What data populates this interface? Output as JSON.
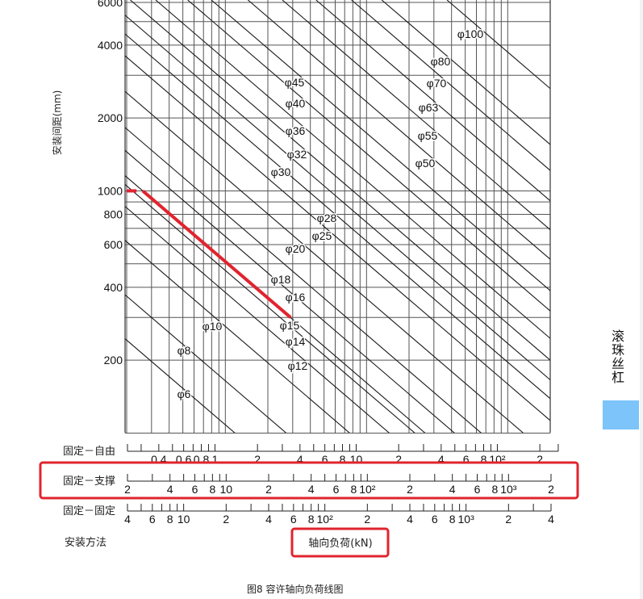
{
  "chart_data": {
    "type": "line",
    "title": "",
    "caption": "图8 容许轴向负荷线图",
    "ylabel": "安装间距(mm)",
    "xlabel": "轴向负荷(kN)",
    "mounting_label": "安装方法",
    "y_scale": "log",
    "ylim": [
      100,
      6000
    ],
    "y_ticks": [
      {
        "v": 6000,
        "t": "6000"
      },
      {
        "v": 4000,
        "t": "4000"
      },
      {
        "v": 2000,
        "t": "2000"
      },
      {
        "v": 1000,
        "t": "1000"
      },
      {
        "v": 800,
        "t": "800"
      },
      {
        "v": 600,
        "t": "600"
      },
      {
        "v": 400,
        "t": "400"
      },
      {
        "v": 200,
        "t": "200"
      }
    ],
    "y_grid": [
      6000,
      5000,
      4000,
      3000,
      2000,
      1000,
      900,
      800,
      700,
      600,
      500,
      400,
      300,
      200,
      100
    ],
    "x_scale": "log",
    "grid": true,
    "x_axes": [
      {
        "name": "固定－自由",
        "range": [
          0.24,
          270
        ],
        "labels": [
          {
            "v": 0.4,
            "t": "0.4"
          },
          {
            "v": 0.6,
            "t": "0.6"
          },
          {
            "v": 0.8,
            "t": "0.8"
          },
          {
            "v": 1,
            "t": "1"
          },
          {
            "v": 2,
            "t": "2"
          },
          {
            "v": 4,
            "t": "4"
          },
          {
            "v": 6,
            "t": "6"
          },
          {
            "v": 8,
            "t": "8"
          },
          {
            "v": 10,
            "t": "10"
          },
          {
            "v": 20,
            "t": "2"
          },
          {
            "v": 40,
            "t": "4"
          },
          {
            "v": 60,
            "t": "6"
          },
          {
            "v": 80,
            "t": "8"
          },
          {
            "v": 100,
            "t": "10²"
          },
          {
            "v": 200,
            "t": "2"
          }
        ]
      },
      {
        "name": "固定－支撑",
        "range": [
          2,
          2000
        ],
        "highlighted": true,
        "labels": [
          {
            "v": 2,
            "t": "2"
          },
          {
            "v": 4,
            "t": "4"
          },
          {
            "v": 6,
            "t": "6"
          },
          {
            "v": 8,
            "t": "8"
          },
          {
            "v": 10,
            "t": "10"
          },
          {
            "v": 20,
            "t": "2"
          },
          {
            "v": 40,
            "t": "4"
          },
          {
            "v": 60,
            "t": "6"
          },
          {
            "v": 80,
            "t": "8"
          },
          {
            "v": 100,
            "t": "10²"
          },
          {
            "v": 200,
            "t": "2"
          },
          {
            "v": 400,
            "t": "4"
          },
          {
            "v": 600,
            "t": "6"
          },
          {
            "v": 800,
            "t": "8"
          },
          {
            "v": 1000,
            "t": "10³"
          },
          {
            "v": 2000,
            "t": "2"
          }
        ]
      },
      {
        "name": "固定－固定",
        "range": [
          4,
          4000
        ],
        "labels": [
          {
            "v": 4,
            "t": "4"
          },
          {
            "v": 6,
            "t": "6"
          },
          {
            "v": 8,
            "t": "8"
          },
          {
            "v": 10,
            "t": "10"
          },
          {
            "v": 20,
            "t": "2"
          },
          {
            "v": 40,
            "t": "4"
          },
          {
            "v": 60,
            "t": "6"
          },
          {
            "v": 80,
            "t": "8"
          },
          {
            "v": 100,
            "t": "10²"
          },
          {
            "v": 200,
            "t": "2"
          },
          {
            "v": 400,
            "t": "4"
          },
          {
            "v": 600,
            "t": "6"
          },
          {
            "v": 800,
            "t": "8"
          },
          {
            "v": 1000,
            "t": "10³"
          },
          {
            "v": 2000,
            "t": "2"
          },
          {
            "v": 4000,
            "t": "4"
          }
        ]
      }
    ],
    "series": [
      {
        "name": "φ6",
        "load_at_1000mm_kN": 0.117
      },
      {
        "name": "φ8",
        "load_at_1000mm_kN": 0.27
      },
      {
        "name": "φ10",
        "load_at_1000mm_kN": 0.76
      },
      {
        "name": "φ12",
        "load_at_1000mm_kN": 1.45
      },
      {
        "name": "φ14",
        "load_at_1000mm_kN": 2.2
      },
      {
        "name": "φ15",
        "load_at_1000mm_kN": 2.6
      },
      {
        "name": "φ16",
        "load_at_1000mm_kN": 4.2
      },
      {
        "name": "φ18",
        "load_at_1000mm_kN": 6.5
      },
      {
        "name": "φ20",
        "load_at_1000mm_kN": 12.9
      },
      {
        "name": "φ25",
        "load_at_1000mm_kN": 25.4
      },
      {
        "name": "φ28",
        "load_at_1000mm_kN": 38.5
      },
      {
        "name": "φ30",
        "load_at_1000mm_kN": 55
      },
      {
        "name": "φ32",
        "load_at_1000mm_kN": 80
      },
      {
        "name": "φ36",
        "load_at_1000mm_kN": 121
      },
      {
        "name": "φ40",
        "load_at_1000mm_kN": 204
      },
      {
        "name": "φ45",
        "load_at_1000mm_kN": 300
      },
      {
        "name": "φ50",
        "load_at_1000mm_kN": 545
      },
      {
        "name": "φ55",
        "load_at_1000mm_kN": 955
      },
      {
        "name": "φ63",
        "load_at_1000mm_kN": 1655
      },
      {
        "name": "φ70",
        "load_at_1000mm_kN": 2950
      },
      {
        "name": "φ80",
        "load_at_1000mm_kN": 4830
      },
      {
        "name": "φ100",
        "load_at_1000mm_kN": 14000
      }
    ],
    "highlight_path": {
      "color": "#e0242e",
      "points_kN_mm": [
        [
          2,
          1000
        ],
        [
          2.35,
          1000
        ],
        null,
        [
          2.6,
          1000
        ],
        [
          29,
          300
        ]
      ]
    },
    "highlight_box_color": "#e0242e"
  },
  "side_tab": {
    "label": "滚珠丝杠",
    "color": "#7cc4fa"
  }
}
